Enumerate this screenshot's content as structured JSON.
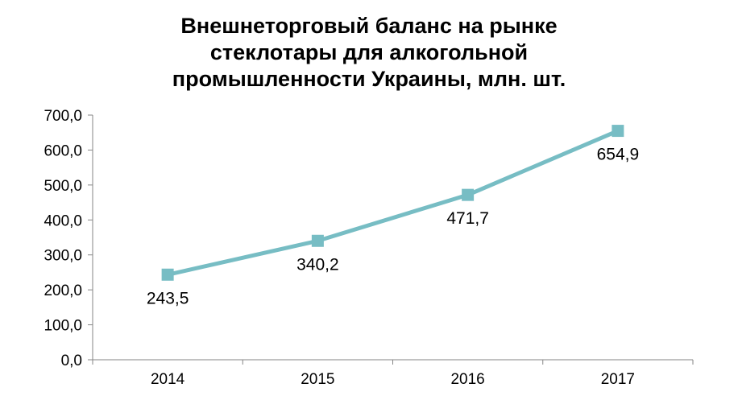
{
  "chart_data": {
    "type": "line",
    "title_lines": [
      "Внешнеторговый баланс на рынке",
      "стеклотары для алкогольной",
      "промышленности Украины, млн. шт."
    ],
    "categories": [
      "2014",
      "2015",
      "2016",
      "2017"
    ],
    "series": [
      {
        "values": [
          243.5,
          340.2,
          471.7,
          654.9
        ],
        "data_labels": [
          "243,5",
          "340,2",
          "471,7",
          "654,9"
        ],
        "color": "#77BDC4",
        "marker": "square"
      }
    ],
    "y_ticks": [
      "0,0",
      "100,0",
      "200,0",
      "300,0",
      "400,0",
      "500,0",
      "600,0",
      "700,0"
    ],
    "ylim": [
      0,
      700
    ],
    "grid": false,
    "legend": "none"
  }
}
